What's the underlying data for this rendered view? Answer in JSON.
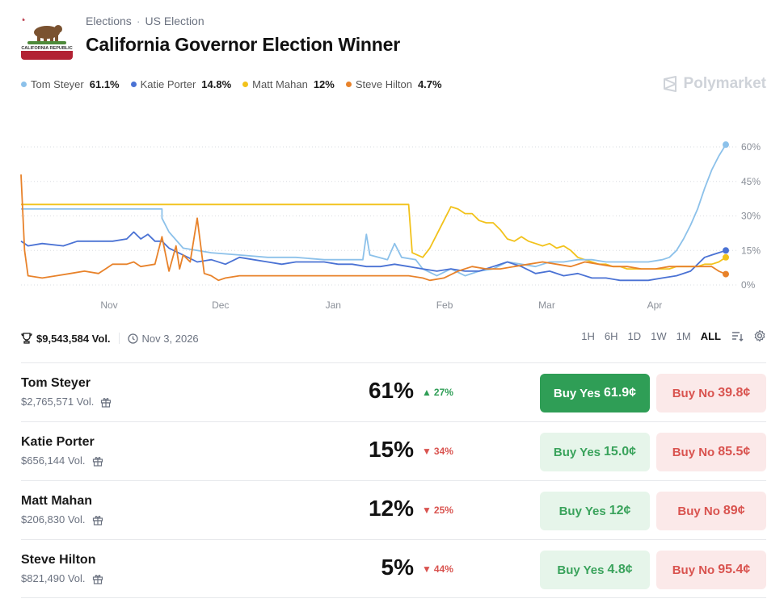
{
  "breadcrumbs": [
    "Elections",
    "US Election"
  ],
  "title": "California Governor Election Winner",
  "brand": "Polymarket",
  "legend": [
    {
      "name": "Tom Steyer",
      "value": "61.1%",
      "color": "#8cc1ea"
    },
    {
      "name": "Katie Porter",
      "value": "14.8%",
      "color": "#4a72d4"
    },
    {
      "name": "Matt Mahan",
      "value": "12%",
      "color": "#f2c21b"
    },
    {
      "name": "Steve Hilton",
      "value": "4.7%",
      "color": "#e8822a"
    }
  ],
  "stats": {
    "volume": "$9,543,584 Vol.",
    "date": "Nov 3, 2026"
  },
  "ranges": [
    "1H",
    "6H",
    "1D",
    "1W",
    "1M",
    "ALL"
  ],
  "active_range": "ALL",
  "chart_data": {
    "type": "line",
    "x_ticks": [
      "Nov",
      "Dec",
      "Jan",
      "Feb",
      "Mar",
      "Apr"
    ],
    "y_ticks": [
      "60%",
      "45%",
      "30%",
      "15%",
      "0%"
    ],
    "ylim": [
      0,
      60
    ],
    "grid": "horizontal dotted",
    "x_index_max": 100,
    "x_tick_index": [
      12.5,
      28.3,
      44.3,
      60.1,
      74.6,
      89.9
    ],
    "series": [
      {
        "name": "Tom Steyer",
        "color": "#8cc1ea",
        "points": [
          [
            0,
            33
          ],
          [
            5,
            33
          ],
          [
            10,
            33
          ],
          [
            15,
            33
          ],
          [
            20,
            33
          ],
          [
            20,
            29
          ],
          [
            21,
            23
          ],
          [
            23,
            16
          ],
          [
            27,
            14
          ],
          [
            31,
            13
          ],
          [
            35,
            12
          ],
          [
            39,
            12
          ],
          [
            43,
            11
          ],
          [
            47,
            11
          ],
          [
            48.5,
            11
          ],
          [
            49,
            22
          ],
          [
            49.5,
            13
          ],
          [
            52,
            11
          ],
          [
            53,
            18
          ],
          [
            54,
            12
          ],
          [
            56,
            11
          ],
          [
            57,
            7
          ],
          [
            59,
            4
          ],
          [
            61,
            7
          ],
          [
            63,
            4
          ],
          [
            65,
            6
          ],
          [
            67,
            7
          ],
          [
            69,
            10
          ],
          [
            71,
            9
          ],
          [
            73,
            8
          ],
          [
            75,
            10
          ],
          [
            77,
            10
          ],
          [
            79,
            11
          ],
          [
            81,
            11
          ],
          [
            83,
            10
          ],
          [
            85,
            10
          ],
          [
            87,
            10
          ],
          [
            89,
            10
          ],
          [
            91,
            11
          ],
          [
            92,
            12
          ],
          [
            93,
            15
          ],
          [
            94,
            20
          ],
          [
            95,
            26
          ],
          [
            96,
            33
          ],
          [
            97,
            42
          ],
          [
            98,
            50
          ],
          [
            99,
            56
          ],
          [
            100,
            61
          ]
        ]
      },
      {
        "name": "Katie Porter",
        "color": "#4a72d4",
        "points": [
          [
            0,
            19
          ],
          [
            1,
            17
          ],
          [
            3,
            18
          ],
          [
            6,
            17
          ],
          [
            8,
            19
          ],
          [
            10,
            19
          ],
          [
            13,
            19
          ],
          [
            15,
            20
          ],
          [
            16,
            23
          ],
          [
            17,
            20
          ],
          [
            18,
            22
          ],
          [
            19,
            19
          ],
          [
            20,
            19
          ],
          [
            21,
            16
          ],
          [
            23,
            13
          ],
          [
            25,
            10
          ],
          [
            27,
            11
          ],
          [
            29,
            9
          ],
          [
            31,
            12
          ],
          [
            33,
            11
          ],
          [
            35,
            10
          ],
          [
            37,
            9
          ],
          [
            39,
            10
          ],
          [
            41,
            10
          ],
          [
            43,
            10
          ],
          [
            45,
            9
          ],
          [
            47,
            9
          ],
          [
            49,
            8
          ],
          [
            51,
            8
          ],
          [
            53,
            9
          ],
          [
            55,
            8
          ],
          [
            57,
            7
          ],
          [
            59,
            6
          ],
          [
            61,
            7
          ],
          [
            63,
            6
          ],
          [
            65,
            6
          ],
          [
            67,
            8
          ],
          [
            69,
            10
          ],
          [
            71,
            8
          ],
          [
            73,
            5
          ],
          [
            75,
            6
          ],
          [
            77,
            4
          ],
          [
            79,
            5
          ],
          [
            81,
            3
          ],
          [
            83,
            3
          ],
          [
            85,
            2
          ],
          [
            87,
            2
          ],
          [
            89,
            2
          ],
          [
            91,
            3
          ],
          [
            93,
            4
          ],
          [
            95,
            6
          ],
          [
            97,
            12
          ],
          [
            98,
            13
          ],
          [
            100,
            15
          ]
        ]
      },
      {
        "name": "Matt Mahan",
        "color": "#f2c21b",
        "points": [
          [
            0,
            35
          ],
          [
            5,
            35
          ],
          [
            10,
            35
          ],
          [
            15,
            35
          ],
          [
            20,
            35
          ],
          [
            25,
            35
          ],
          [
            30,
            35
          ],
          [
            35,
            35
          ],
          [
            40,
            35
          ],
          [
            45,
            35
          ],
          [
            50,
            35
          ],
          [
            55,
            35
          ],
          [
            55.5,
            14
          ],
          [
            57,
            12
          ],
          [
            58,
            16
          ],
          [
            59,
            22
          ],
          [
            60,
            28
          ],
          [
            61,
            34
          ],
          [
            62,
            33
          ],
          [
            63,
            31
          ],
          [
            64,
            31
          ],
          [
            65,
            28
          ],
          [
            66,
            27
          ],
          [
            67,
            27
          ],
          [
            68,
            24
          ],
          [
            69,
            20
          ],
          [
            70,
            19
          ],
          [
            71,
            21
          ],
          [
            72,
            19
          ],
          [
            73,
            18
          ],
          [
            74,
            17
          ],
          [
            75,
            18
          ],
          [
            76,
            16
          ],
          [
            77,
            17
          ],
          [
            78,
            15
          ],
          [
            79,
            12
          ],
          [
            80,
            11
          ],
          [
            81,
            10
          ],
          [
            82,
            9
          ],
          [
            83,
            9
          ],
          [
            84,
            8
          ],
          [
            85,
            8
          ],
          [
            86,
            7
          ],
          [
            87,
            7
          ],
          [
            88,
            7
          ],
          [
            89,
            7
          ],
          [
            90,
            7
          ],
          [
            91,
            7
          ],
          [
            92,
            7
          ],
          [
            93,
            8
          ],
          [
            94,
            8
          ],
          [
            95,
            8
          ],
          [
            96,
            8
          ],
          [
            97,
            9
          ],
          [
            98,
            9
          ],
          [
            99,
            10
          ],
          [
            100,
            12
          ]
        ]
      },
      {
        "name": "Steve Hilton",
        "color": "#e8822a",
        "points": [
          [
            0,
            48
          ],
          [
            0.5,
            15
          ],
          [
            1,
            4
          ],
          [
            3,
            3
          ],
          [
            5,
            4
          ],
          [
            7,
            5
          ],
          [
            9,
            6
          ],
          [
            11,
            5
          ],
          [
            12,
            7
          ],
          [
            13,
            9
          ],
          [
            15,
            9
          ],
          [
            16,
            10
          ],
          [
            17,
            8
          ],
          [
            19,
            9
          ],
          [
            20,
            21
          ],
          [
            21,
            6
          ],
          [
            22,
            17
          ],
          [
            22.5,
            7
          ],
          [
            23,
            13
          ],
          [
            24,
            10
          ],
          [
            25,
            29
          ],
          [
            26,
            5
          ],
          [
            27,
            4
          ],
          [
            28,
            2
          ],
          [
            29,
            3
          ],
          [
            31,
            4
          ],
          [
            35,
            4
          ],
          [
            40,
            4
          ],
          [
            45,
            4
          ],
          [
            50,
            4
          ],
          [
            55,
            4
          ],
          [
            57,
            3
          ],
          [
            58,
            2
          ],
          [
            60,
            3
          ],
          [
            62,
            6
          ],
          [
            64,
            8
          ],
          [
            66,
            7
          ],
          [
            68,
            7
          ],
          [
            70,
            8
          ],
          [
            72,
            9
          ],
          [
            74,
            10
          ],
          [
            76,
            9
          ],
          [
            78,
            8
          ],
          [
            80,
            10
          ],
          [
            82,
            9
          ],
          [
            84,
            8
          ],
          [
            86,
            8
          ],
          [
            88,
            7
          ],
          [
            90,
            7
          ],
          [
            92,
            8
          ],
          [
            94,
            8
          ],
          [
            96,
            8
          ],
          [
            98,
            8
          ],
          [
            99,
            6
          ],
          [
            100,
            4.7
          ]
        ]
      }
    ]
  },
  "outcomes": [
    {
      "name": "Tom Steyer",
      "volume": "$2,765,571 Vol.",
      "percent": "61%",
      "change": "27%",
      "direction": "up",
      "yes_label": "Buy Yes",
      "yes_price": "61.9¢",
      "no_label": "Buy No",
      "no_price": "39.8¢",
      "primary": true
    },
    {
      "name": "Katie Porter",
      "volume": "$656,144 Vol.",
      "percent": "15%",
      "change": "34%",
      "direction": "down",
      "yes_label": "Buy Yes",
      "yes_price": "15.0¢",
      "no_label": "Buy No",
      "no_price": "85.5¢",
      "primary": false
    },
    {
      "name": "Matt Mahan",
      "volume": "$206,830 Vol.",
      "percent": "12%",
      "change": "25%",
      "direction": "down",
      "yes_label": "Buy Yes",
      "yes_price": "12¢",
      "no_label": "Buy No",
      "no_price": "89¢",
      "primary": false
    },
    {
      "name": "Steve Hilton",
      "volume": "$821,490 Vol.",
      "percent": "5%",
      "change": "44%",
      "direction": "down",
      "yes_label": "Buy Yes",
      "yes_price": "4.8¢",
      "no_label": "Buy No",
      "no_price": "95.4¢",
      "primary": false
    }
  ],
  "flag": {
    "text": "CALIFORNIA REPUBLIC",
    "colors": {
      "star": "#b22234",
      "stripe": "#b22234",
      "bear": "#6b4a2b",
      "grass": "#4e8a3a"
    }
  }
}
